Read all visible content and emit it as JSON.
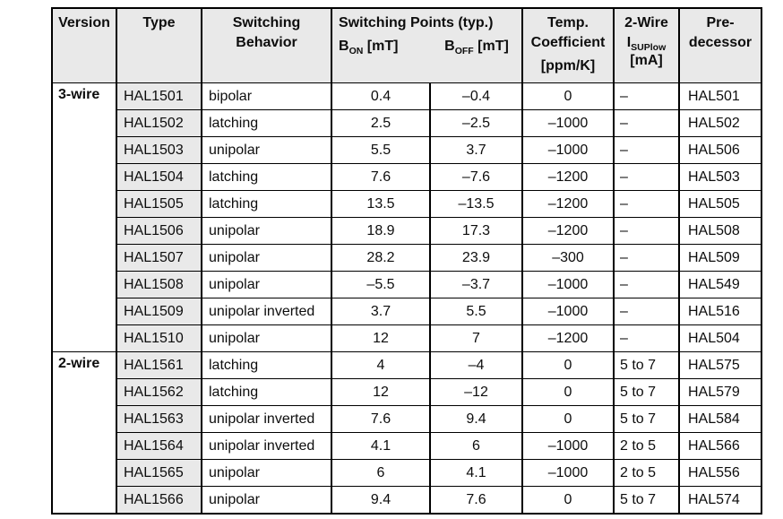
{
  "colors": {
    "header_bg": "#e9e9e9",
    "type_cell_bg": "#e9e9e9",
    "border": "#000000",
    "text": "#0d0d0d"
  },
  "table": {
    "header": {
      "version": "Version",
      "type": "Type",
      "behavior_line1": "Switching",
      "behavior_line2": "Behavior",
      "switching_points_title": "Switching Points (typ.)",
      "b_on_base": "B",
      "b_on_sub": "ON",
      "b_on_unit": " [mT]",
      "b_off_base": "B",
      "b_off_sub": "OFF",
      "b_off_unit": " [mT]",
      "temp_line1": "Temp.",
      "temp_line2": "Coefficient",
      "temp_line3": "[ppm/K]",
      "twowire_line1": "2-Wire",
      "twowire_base": "I",
      "twowire_sub": "SUPlow",
      "twowire_unit": "[mA]",
      "predecessor_line1": "Pre-",
      "predecessor_line2": "decessor"
    },
    "groups": [
      {
        "version": "3-wire",
        "rows": [
          {
            "type": "HAL1501",
            "behavior": "bipolar",
            "b_on": "0.4",
            "b_off": "–0.4",
            "temp_coeff": "0",
            "i_sup": "–",
            "predecessor": "HAL501"
          },
          {
            "type": "HAL1502",
            "behavior": "latching",
            "b_on": "2.5",
            "b_off": "–2.5",
            "temp_coeff": "–1000",
            "i_sup": "–",
            "predecessor": "HAL502"
          },
          {
            "type": "HAL1503",
            "behavior": "unipolar",
            "b_on": "5.5",
            "b_off": "3.7",
            "temp_coeff": "–1000",
            "i_sup": "–",
            "predecessor": "HAL506"
          },
          {
            "type": "HAL1504",
            "behavior": "latching",
            "b_on": "7.6",
            "b_off": "–7.6",
            "temp_coeff": "–1200",
            "i_sup": "–",
            "predecessor": "HAL503"
          },
          {
            "type": "HAL1505",
            "behavior": "latching",
            "b_on": "13.5",
            "b_off": "–13.5",
            "temp_coeff": "–1200",
            "i_sup": "–",
            "predecessor": "HAL505"
          },
          {
            "type": "HAL1506",
            "behavior": "unipolar",
            "b_on": "18.9",
            "b_off": "17.3",
            "temp_coeff": "–1200",
            "i_sup": "–",
            "predecessor": "HAL508"
          },
          {
            "type": "HAL1507",
            "behavior": "unipolar",
            "b_on": "28.2",
            "b_off": "23.9",
            "temp_coeff": "–300",
            "i_sup": "–",
            "predecessor": "HAL509"
          },
          {
            "type": "HAL1508",
            "behavior": "unipolar",
            "b_on": "–5.5",
            "b_off": "–3.7",
            "temp_coeff": "–1000",
            "i_sup": "–",
            "predecessor": "HAL549"
          },
          {
            "type": "HAL1509",
            "behavior": "unipolar inverted",
            "b_on": "3.7",
            "b_off": "5.5",
            "temp_coeff": "–1000",
            "i_sup": "–",
            "predecessor": "HAL516"
          },
          {
            "type": "HAL1510",
            "behavior": "unipolar",
            "b_on": "12",
            "b_off": "7",
            "temp_coeff": "–1200",
            "i_sup": "–",
            "predecessor": "HAL504"
          }
        ]
      },
      {
        "version": "2-wire",
        "rows": [
          {
            "type": "HAL1561",
            "behavior": "latching",
            "b_on": "4",
            "b_off": "–4",
            "temp_coeff": "0",
            "i_sup": "5 to 7",
            "predecessor": "HAL575"
          },
          {
            "type": "HAL1562",
            "behavior": "latching",
            "b_on": "12",
            "b_off": "–12",
            "temp_coeff": "0",
            "i_sup": "5 to 7",
            "predecessor": "HAL579"
          },
          {
            "type": "HAL1563",
            "behavior": "unipolar inverted",
            "b_on": "7.6",
            "b_off": "9.4",
            "temp_coeff": "0",
            "i_sup": "5 to 7",
            "predecessor": "HAL584"
          },
          {
            "type": "HAL1564",
            "behavior": "unipolar inverted",
            "b_on": "4.1",
            "b_off": "6",
            "temp_coeff": "–1000",
            "i_sup": "2 to 5",
            "predecessor": "HAL566"
          },
          {
            "type": "HAL1565",
            "behavior": "unipolar",
            "b_on": "6",
            "b_off": "4.1",
            "temp_coeff": "–1000",
            "i_sup": "2 to 5",
            "predecessor": "HAL556"
          },
          {
            "type": "HAL1566",
            "behavior": "unipolar",
            "b_on": "9.4",
            "b_off": "7.6",
            "temp_coeff": "0",
            "i_sup": "5 to 7",
            "predecessor": "HAL574"
          }
        ]
      }
    ]
  }
}
